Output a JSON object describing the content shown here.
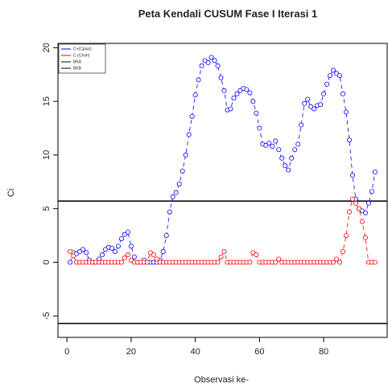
{
  "chart_data": {
    "type": "line",
    "title": "Peta Kendali CUSUM Fase I Iterasi 1",
    "xlabel": "Observasi ke-",
    "ylabel": "Ci",
    "x": [
      1,
      2,
      3,
      4,
      5,
      6,
      7,
      8,
      9,
      10,
      11,
      12,
      13,
      14,
      15,
      16,
      17,
      18,
      19,
      20,
      21,
      22,
      23,
      24,
      25,
      26,
      27,
      28,
      29,
      30,
      31,
      32,
      33,
      34,
      35,
      36,
      37,
      38,
      39,
      40,
      41,
      42,
      43,
      44,
      45,
      46,
      47,
      48,
      49,
      50,
      51,
      52,
      53,
      54,
      55,
      56,
      57,
      58,
      59,
      60,
      61,
      62,
      63,
      64,
      65,
      66,
      67,
      68,
      69,
      70,
      71,
      72,
      73,
      74,
      75,
      76,
      77,
      78,
      79,
      80,
      81,
      82,
      83,
      84,
      85,
      86,
      87,
      88,
      89,
      90,
      91,
      92,
      93,
      94,
      95,
      96
    ],
    "series": [
      {
        "name": "C+(Cplus)",
        "color": "#0000ff",
        "values": [
          0,
          0.9,
          0.8,
          1.0,
          1.2,
          0.9,
          0.2,
          0,
          0,
          0.3,
          0.7,
          1.2,
          1.4,
          1.3,
          1.0,
          1.5,
          2.2,
          2.6,
          2.8,
          1.5,
          0.5,
          0,
          0,
          0.2,
          0,
          0,
          0,
          0,
          0.2,
          1.0,
          2.5,
          4.7,
          6.1,
          6.5,
          7.3,
          8.5,
          10.0,
          11.9,
          13.6,
          15.6,
          17.0,
          18.3,
          18.8,
          18.6,
          19.1,
          18.8,
          18.3,
          17.2,
          16.0,
          14.2,
          14.3,
          15.3,
          15.7,
          16.0,
          16.2,
          16.1,
          15.8,
          15.0,
          13.9,
          12.5,
          11.0,
          10.9,
          11.1,
          10.8,
          11.3,
          10.5,
          9.7,
          9.0,
          8.6,
          9.7,
          10.5,
          11.0,
          12.8,
          14.8,
          15.2,
          14.5,
          14.3,
          14.6,
          14.7,
          15.7,
          16.6,
          17.4,
          17.9,
          17.6,
          17.4,
          15.7,
          14.0,
          11.4,
          8.1,
          5.9,
          5.0,
          4.8,
          4.6,
          5.5,
          6.6,
          8.4
        ]
      },
      {
        "name": "C-(Cmin)",
        "color": "#ff0000",
        "values": [
          1.0,
          0.6,
          0,
          0,
          0,
          0,
          0,
          0,
          0,
          0,
          0,
          0,
          0,
          0,
          0,
          0,
          0,
          0.4,
          0.7,
          0.2,
          0,
          0,
          0,
          0,
          0,
          0.9,
          0.7,
          0.3,
          0,
          0,
          0,
          0,
          0,
          0,
          0,
          0,
          0,
          0,
          0,
          0,
          0,
          0,
          0,
          0,
          0,
          0,
          0,
          0.5,
          1.0,
          0,
          0,
          0,
          0,
          0,
          0,
          0,
          0,
          0.9,
          0.7,
          0,
          0,
          0,
          0,
          0,
          0,
          0.3,
          0,
          0,
          0,
          0,
          0,
          0,
          0,
          0,
          0,
          0,
          0,
          0,
          0,
          0,
          0,
          0,
          0,
          0.3,
          0,
          1.0,
          2.5,
          4.7,
          5.9,
          5.5,
          5.0,
          3.8,
          2.3,
          0,
          0,
          0
        ]
      }
    ],
    "hlines": [
      {
        "name": "BKA",
        "value": 5.7,
        "color": "#000000"
      },
      {
        "name": "BKB",
        "value": -5.7,
        "color": "#000000"
      }
    ],
    "xlim": [
      -2.8,
      99.8
    ],
    "ylim": [
      -7,
      20.4
    ],
    "xticks": [
      0,
      20,
      40,
      60,
      80
    ],
    "yticks": [
      -5,
      0,
      5,
      10,
      15,
      20
    ]
  }
}
